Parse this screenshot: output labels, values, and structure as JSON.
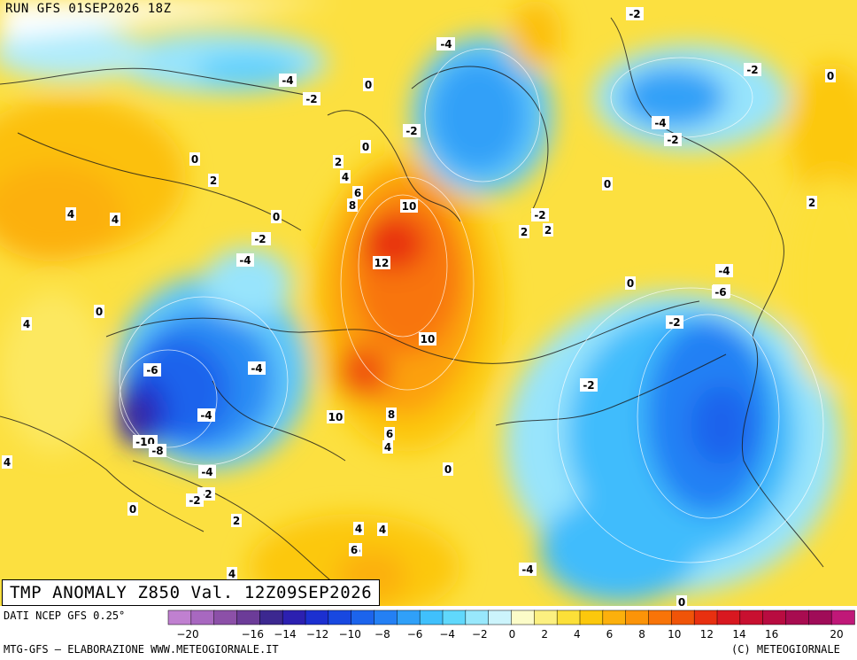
{
  "header": {
    "run_label": "RUN GFS 01SEP2026 18Z"
  },
  "title": "TMP ANOMALY Z850 Val. 12Z09SEP2026",
  "footer": {
    "source_label": "DATI NCEP GFS 0.25°",
    "credit_label": "MTG-GFS – ELABORAZIONE WWW.METEOGIORNALE.IT",
    "copyright_label": "(C) METEOGIORNALE"
  },
  "legend": {
    "colors": [
      "#c080d0",
      "#a868c0",
      "#8c50a8",
      "#6c3c98",
      "#3c2890",
      "#2c20b0",
      "#1c30d0",
      "#1848e0",
      "#1c64ec",
      "#2480f4",
      "#30a0f8",
      "#40c0fc",
      "#60d8fc",
      "#98e8fc",
      "#ccf4fc",
      "#fcfcc8",
      "#fcf080",
      "#fce038",
      "#fcc80c",
      "#fcb00c",
      "#fc9408",
      "#f87408",
      "#f05408",
      "#e83010",
      "#d81820",
      "#c81030",
      "#b80c40",
      "#a80c50",
      "#a00c58",
      "#c01878"
    ],
    "ticks": [
      "-20",
      "-18",
      "-16",
      "-14",
      "-12",
      "-10",
      "-8",
      "-6",
      "-4",
      "-2",
      "0",
      "2",
      "4",
      "6",
      "8",
      "10",
      "12",
      "14",
      "16",
      "18",
      "20"
    ],
    "tick_labels_shown": [
      "-20",
      "-16",
      "-14",
      "-12",
      "-10",
      "-8",
      "-6",
      "-4",
      "-2",
      "0",
      "2",
      "4",
      "6",
      "8",
      "10",
      "12",
      "14",
      "16",
      "20"
    ]
  },
  "map": {
    "contour_labels": [
      {
        "text": "-4"
      },
      {
        "text": "-2"
      },
      {
        "text": "0"
      },
      {
        "text": "-4"
      },
      {
        "text": "-2"
      },
      {
        "text": "0"
      },
      {
        "text": "2"
      },
      {
        "text": "4"
      },
      {
        "text": "6"
      },
      {
        "text": "8"
      },
      {
        "text": "10"
      },
      {
        "text": "12"
      },
      {
        "text": "10"
      },
      {
        "text": "10"
      },
      {
        "text": "8"
      },
      {
        "text": "6"
      },
      {
        "text": "4"
      },
      {
        "text": "0"
      },
      {
        "text": "2"
      },
      {
        "text": "0"
      },
      {
        "text": "-2"
      },
      {
        "text": "-2"
      },
      {
        "text": "-4"
      },
      {
        "text": "-2"
      },
      {
        "text": "-2"
      },
      {
        "text": "-2"
      },
      {
        "text": "0"
      },
      {
        "text": "2"
      },
      {
        "text": "2"
      },
      {
        "text": "-4"
      },
      {
        "text": "-6"
      },
      {
        "text": "0"
      },
      {
        "text": "-2"
      },
      {
        "text": "-2"
      },
      {
        "text": "-4"
      },
      {
        "text": "-4"
      },
      {
        "text": "-2"
      },
      {
        "text": "0"
      },
      {
        "text": "6"
      },
      {
        "text": "4"
      },
      {
        "text": "2"
      },
      {
        "text": "0"
      },
      {
        "text": "2"
      },
      {
        "text": "4"
      },
      {
        "text": "0"
      },
      {
        "text": "-2"
      },
      {
        "text": "-4"
      },
      {
        "text": "-6"
      },
      {
        "text": "-4"
      },
      {
        "text": "-6"
      },
      {
        "text": "-10"
      },
      {
        "text": "-8"
      },
      {
        "text": "-4"
      },
      {
        "text": "-2"
      },
      {
        "text": "4"
      },
      {
        "text": "0"
      },
      {
        "text": "0"
      },
      {
        "text": "4"
      },
      {
        "text": "4"
      },
      {
        "text": "6"
      },
      {
        "text": "2"
      },
      {
        "text": "4"
      },
      {
        "text": "-4"
      },
      {
        "text": "0"
      },
      {
        "text": "4"
      }
    ]
  }
}
